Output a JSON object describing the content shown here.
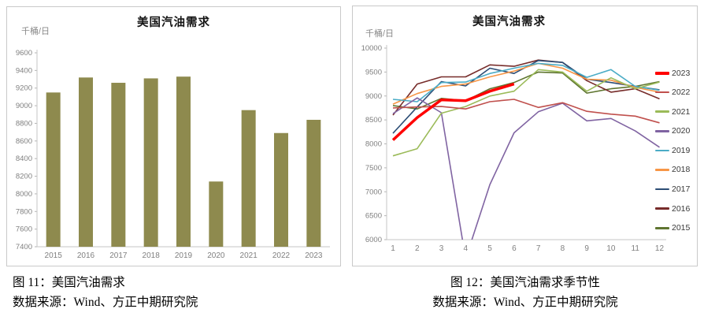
{
  "captions": {
    "left_title": "图 11：美国汽油需求",
    "left_source": "数据来源：Wind、方正中期研究院",
    "right_title": "图 12：美国汽油需求季节性",
    "right_source": "数据来源：Wind、方正中期研究院"
  },
  "chart_data": [
    {
      "id": "us-gasoline-demand-annual",
      "type": "bar",
      "title": "美国汽油需求",
      "unit_label": "千桶/日",
      "categories": [
        "2015",
        "2016",
        "2017",
        "2018",
        "2019",
        "2020",
        "2021",
        "2022",
        "2023"
      ],
      "values": [
        9150,
        9320,
        9260,
        9310,
        9330,
        8140,
        8950,
        8690,
        8840
      ],
      "ylim": [
        7400,
        9600
      ],
      "ytick_step": 200,
      "bar_color": "#8E8A4E",
      "grid": false,
      "axis_color": "#c6c6c6",
      "label_color": "#7f7f7f"
    },
    {
      "id": "us-gasoline-demand-seasonality",
      "type": "line",
      "title": "美国汽油需求",
      "unit_label": "千桶/日",
      "x": [
        1,
        2,
        3,
        4,
        5,
        6,
        7,
        8,
        9,
        10,
        11,
        12
      ],
      "ylim": [
        6000,
        10000
      ],
      "ytick_step": 500,
      "grid": false,
      "legend_position": "right",
      "axis_color": "#c6c6c6",
      "label_color": "#7f7f7f",
      "series": [
        {
          "name": "2023",
          "color": "#FF0000",
          "width": 3.5,
          "values": [
            8080,
            8550,
            8920,
            8900,
            9100,
            9250
          ]
        },
        {
          "name": "2022",
          "color": "#C0504D",
          "width": 1.6,
          "values": [
            8750,
            8770,
            8780,
            8730,
            8880,
            8930,
            8760,
            8860,
            8680,
            8620,
            8580,
            8440
          ]
        },
        {
          "name": "2021",
          "color": "#9BBB59",
          "width": 1.6,
          "values": [
            7750,
            7900,
            8640,
            8780,
            9000,
            9100,
            9550,
            9500,
            9100,
            9380,
            9150,
            9290
          ]
        },
        {
          "name": "2020",
          "color": "#8064A2",
          "width": 1.6,
          "values": [
            8630,
            8960,
            8650,
            5600,
            7150,
            8230,
            8670,
            8850,
            8480,
            8530,
            8270,
            7930
          ]
        },
        {
          "name": "2019",
          "color": "#4BACC6",
          "width": 1.6,
          "values": [
            8930,
            8880,
            9280,
            9290,
            9470,
            9580,
            9680,
            9640,
            9390,
            9550,
            9200,
            9120
          ]
        },
        {
          "name": "2018",
          "color": "#F79646",
          "width": 1.6,
          "values": [
            8830,
            9050,
            9200,
            9250,
            9400,
            9520,
            9680,
            9580,
            9350,
            9330,
            9180,
            9080
          ]
        },
        {
          "name": "2017",
          "color": "#2C4D75",
          "width": 1.6,
          "values": [
            8220,
            8770,
            9300,
            9210,
            9580,
            9470,
            9740,
            9700,
            9350,
            9280,
            9200,
            9130
          ]
        },
        {
          "name": "2016",
          "color": "#772C2A",
          "width": 1.6,
          "values": [
            8600,
            9250,
            9400,
            9400,
            9650,
            9620,
            9750,
            9700,
            9320,
            9080,
            9150,
            8940
          ]
        },
        {
          "name": "2015",
          "color": "#5F7530",
          "width": 1.6,
          "values": [
            8800,
            8730,
            8950,
            8900,
            9150,
            9280,
            9500,
            9480,
            9060,
            9150,
            9200,
            9300
          ]
        }
      ]
    }
  ]
}
